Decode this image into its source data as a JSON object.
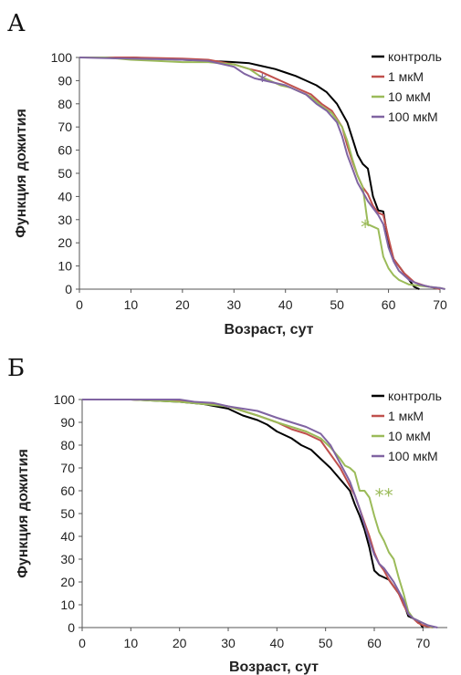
{
  "chart_data": [
    {
      "type": "line",
      "panel_label": "А",
      "xlabel": "Возраст, сут",
      "ylabel": "Функция дожития",
      "xlim": [
        0,
        70
      ],
      "ylim": [
        0,
        100
      ],
      "xticks": [
        "0",
        "10",
        "20",
        "30",
        "40",
        "50",
        "60",
        "70"
      ],
      "yticks": [
        "0",
        "10",
        "20",
        "30",
        "40",
        "50",
        "60",
        "70",
        "80",
        "90",
        "100"
      ],
      "legend_position": "top-right",
      "series": [
        {
          "name": "контроль",
          "color": "#000000",
          "points": [
            [
              0,
              100
            ],
            [
              10,
              100
            ],
            [
              20,
              99
            ],
            [
              25,
              98.5
            ],
            [
              30,
              98
            ],
            [
              33,
              97.5
            ],
            [
              35,
              96.5
            ],
            [
              38,
              95
            ],
            [
              40,
              93.5
            ],
            [
              42,
              92
            ],
            [
              44,
              90
            ],
            [
              46,
              88
            ],
            [
              48,
              85
            ],
            [
              50,
              80
            ],
            [
              52,
              72
            ],
            [
              53,
              65
            ],
            [
              54,
              58
            ],
            [
              55,
              54
            ],
            [
              56,
              52
            ],
            [
              57,
              40
            ],
            [
              58,
              34
            ],
            [
              59,
              33.5
            ],
            [
              60,
              20
            ],
            [
              61,
              13
            ],
            [
              62,
              10
            ],
            [
              63,
              7
            ],
            [
              64,
              4
            ],
            [
              65,
              1
            ],
            [
              66,
              0
            ]
          ]
        },
        {
          "name": "1 мкМ",
          "color": "#c0504d",
          "points": [
            [
              0,
              100
            ],
            [
              10,
              100
            ],
            [
              20,
              99.5
            ],
            [
              25,
              99
            ],
            [
              30,
              97
            ],
            [
              33,
              95
            ],
            [
              35,
              94
            ],
            [
              37,
              92
            ],
            [
              39,
              90
            ],
            [
              41,
              88
            ],
            [
              43,
              86
            ],
            [
              45,
              84
            ],
            [
              47,
              80
            ],
            [
              49,
              77
            ],
            [
              51,
              70
            ],
            [
              52,
              62
            ],
            [
              53,
              55
            ],
            [
              54,
              49
            ],
            [
              55,
              44
            ],
            [
              56,
              41
            ],
            [
              57,
              36
            ],
            [
              58,
              33
            ],
            [
              59,
              32
            ],
            [
              60,
              22
            ],
            [
              61,
              13
            ],
            [
              62,
              10
            ],
            [
              63,
              7
            ],
            [
              64,
              5
            ],
            [
              65,
              3
            ],
            [
              67,
              1.5
            ],
            [
              69,
              0.5
            ],
            [
              70,
              0
            ]
          ]
        },
        {
          "name": "10 мкМ",
          "color": "#9bbb59",
          "points": [
            [
              0,
              100
            ],
            [
              5,
              100
            ],
            [
              10,
              99
            ],
            [
              15,
              98.5
            ],
            [
              20,
              98
            ],
            [
              25,
              98
            ],
            [
              30,
              97
            ],
            [
              33,
              95
            ],
            [
              35,
              92
            ],
            [
              37,
              90
            ],
            [
              39,
              88
            ],
            [
              41,
              87
            ],
            [
              43,
              85
            ],
            [
              45,
              83
            ],
            [
              47,
              79
            ],
            [
              49,
              76
            ],
            [
              51,
              70
            ],
            [
              52,
              64
            ],
            [
              53,
              56
            ],
            [
              54,
              49
            ],
            [
              55,
              44
            ],
            [
              56,
              28
            ],
            [
              57,
              27
            ],
            [
              58,
              26
            ],
            [
              59,
              14
            ],
            [
              60,
              9
            ],
            [
              61,
              6
            ],
            [
              62,
              4
            ],
            [
              63,
              3
            ],
            [
              64,
              2
            ],
            [
              66,
              1.5
            ],
            [
              68,
              1
            ],
            [
              70,
              0.5
            ],
            [
              71,
              0
            ]
          ]
        },
        {
          "name": "100 мкМ",
          "color": "#8064a2",
          "points": [
            [
              0,
              100
            ],
            [
              10,
              99.5
            ],
            [
              20,
              99
            ],
            [
              25,
              98.5
            ],
            [
              28,
              97
            ],
            [
              30,
              96
            ],
            [
              32,
              93
            ],
            [
              34,
              91
            ],
            [
              36,
              90
            ],
            [
              38,
              89
            ],
            [
              40,
              88
            ],
            [
              42,
              86
            ],
            [
              44,
              84
            ],
            [
              46,
              80
            ],
            [
              48,
              77
            ],
            [
              50,
              72
            ],
            [
              51,
              66
            ],
            [
              52,
              58
            ],
            [
              53,
              52
            ],
            [
              54,
              46
            ],
            [
              55,
              42
            ],
            [
              56,
              38
            ],
            [
              57,
              35
            ],
            [
              58,
              32
            ],
            [
              59,
              28
            ],
            [
              60,
              18
            ],
            [
              61,
              12
            ],
            [
              62,
              8
            ],
            [
              63,
              6
            ],
            [
              64,
              4
            ],
            [
              66,
              2
            ],
            [
              68,
              1
            ],
            [
              70,
              0.5
            ],
            [
              71,
              0
            ]
          ]
        }
      ],
      "annotations": [
        {
          "text": "*",
          "color": "#8064a2",
          "x": 35.5,
          "y": 87
        },
        {
          "text": "*",
          "color": "#9bbb59",
          "x": 55.5,
          "y": 24
        }
      ]
    },
    {
      "type": "line",
      "panel_label": "Б",
      "xlabel": "Возраст, сут",
      "ylabel": "Функция дожития",
      "xlim": [
        0,
        75
      ],
      "ylim": [
        0,
        100
      ],
      "xticks": [
        "0",
        "10",
        "20",
        "30",
        "40",
        "50",
        "60",
        "70"
      ],
      "yticks": [
        "0",
        "10",
        "20",
        "30",
        "40",
        "50",
        "60",
        "70",
        "80",
        "90",
        "100"
      ],
      "legend_position": "top-right",
      "series": [
        {
          "name": "контроль",
          "color": "#000000",
          "points": [
            [
              0,
              100
            ],
            [
              10,
              100
            ],
            [
              15,
              99.5
            ],
            [
              20,
              99
            ],
            [
              25,
              98
            ],
            [
              30,
              96
            ],
            [
              33,
              93
            ],
            [
              36,
              91
            ],
            [
              38,
              89
            ],
            [
              40,
              86
            ],
            [
              43,
              83
            ],
            [
              45,
              80
            ],
            [
              47,
              78
            ],
            [
              49,
              74
            ],
            [
              51,
              70
            ],
            [
              53,
              65
            ],
            [
              55,
              60
            ],
            [
              56,
              54
            ],
            [
              57,
              49
            ],
            [
              58,
              43
            ],
            [
              59,
              35
            ],
            [
              60,
              25
            ],
            [
              61,
              23
            ],
            [
              62,
              22
            ],
            [
              63,
              21
            ],
            [
              64,
              18
            ],
            [
              65,
              15
            ],
            [
              66,
              11
            ],
            [
              67,
              5
            ],
            [
              68,
              4
            ],
            [
              69,
              3
            ],
            [
              70,
              0
            ]
          ]
        },
        {
          "name": "1 мкМ",
          "color": "#c0504d",
          "points": [
            [
              0,
              100
            ],
            [
              10,
              100
            ],
            [
              20,
              99.5
            ],
            [
              25,
              98.5
            ],
            [
              30,
              97
            ],
            [
              33,
              95
            ],
            [
              36,
              93
            ],
            [
              40,
              90
            ],
            [
              43,
              87
            ],
            [
              46,
              85
            ],
            [
              49,
              82
            ],
            [
              51,
              76
            ],
            [
              53,
              70
            ],
            [
              55,
              62
            ],
            [
              56,
              58
            ],
            [
              57,
              52
            ],
            [
              58,
              46
            ],
            [
              59,
              40
            ],
            [
              60,
              33
            ],
            [
              61,
              28
            ],
            [
              62,
              25
            ],
            [
              63,
              21
            ],
            [
              64,
              18
            ],
            [
              65,
              15
            ],
            [
              66,
              10
            ],
            [
              67,
              6
            ],
            [
              68,
              4
            ],
            [
              69,
              2
            ],
            [
              70,
              1
            ],
            [
              72,
              0
            ]
          ]
        },
        {
          "name": "10 мкМ",
          "color": "#9bbb59",
          "points": [
            [
              0,
              100
            ],
            [
              10,
              100
            ],
            [
              20,
              99
            ],
            [
              25,
              98
            ],
            [
              30,
              97
            ],
            [
              33,
              95
            ],
            [
              36,
              93
            ],
            [
              40,
              90
            ],
            [
              43,
              88
            ],
            [
              46,
              86
            ],
            [
              49,
              83
            ],
            [
              51,
              79
            ],
            [
              53,
              74
            ],
            [
              54,
              71
            ],
            [
              55,
              70
            ],
            [
              56,
              68
            ],
            [
              57,
              60
            ],
            [
              58,
              60
            ],
            [
              59,
              57
            ],
            [
              60,
              49
            ],
            [
              61,
              42
            ],
            [
              62,
              38
            ],
            [
              63,
              33
            ],
            [
              64,
              30
            ],
            [
              65,
              22
            ],
            [
              66,
              15
            ],
            [
              67,
              7
            ],
            [
              68,
              4
            ],
            [
              69,
              3
            ],
            [
              70,
              2
            ],
            [
              72,
              0
            ]
          ]
        },
        {
          "name": "100 мкМ",
          "color": "#8064a2",
          "points": [
            [
              0,
              100
            ],
            [
              10,
              100
            ],
            [
              20,
              100
            ],
            [
              23,
              99
            ],
            [
              27,
              98.5
            ],
            [
              30,
              97
            ],
            [
              33,
              96
            ],
            [
              36,
              95
            ],
            [
              40,
              92
            ],
            [
              43,
              90
            ],
            [
              46,
              88
            ],
            [
              49,
              85
            ],
            [
              51,
              80
            ],
            [
              53,
              72
            ],
            [
              55,
              64
            ],
            [
              56,
              58
            ],
            [
              57,
              52
            ],
            [
              58,
              45
            ],
            [
              59,
              38
            ],
            [
              60,
              32
            ],
            [
              61,
              28
            ],
            [
              62,
              26
            ],
            [
              63,
              23
            ],
            [
              64,
              20
            ],
            [
              65,
              16
            ],
            [
              66,
              12
            ],
            [
              67,
              6
            ],
            [
              68,
              4
            ],
            [
              69,
              3
            ],
            [
              70,
              2
            ],
            [
              71,
              1
            ],
            [
              73,
              0
            ]
          ]
        }
      ],
      "annotations": [
        {
          "text": "**",
          "color": "#9bbb59",
          "x": 62,
          "y": 55
        }
      ]
    }
  ]
}
